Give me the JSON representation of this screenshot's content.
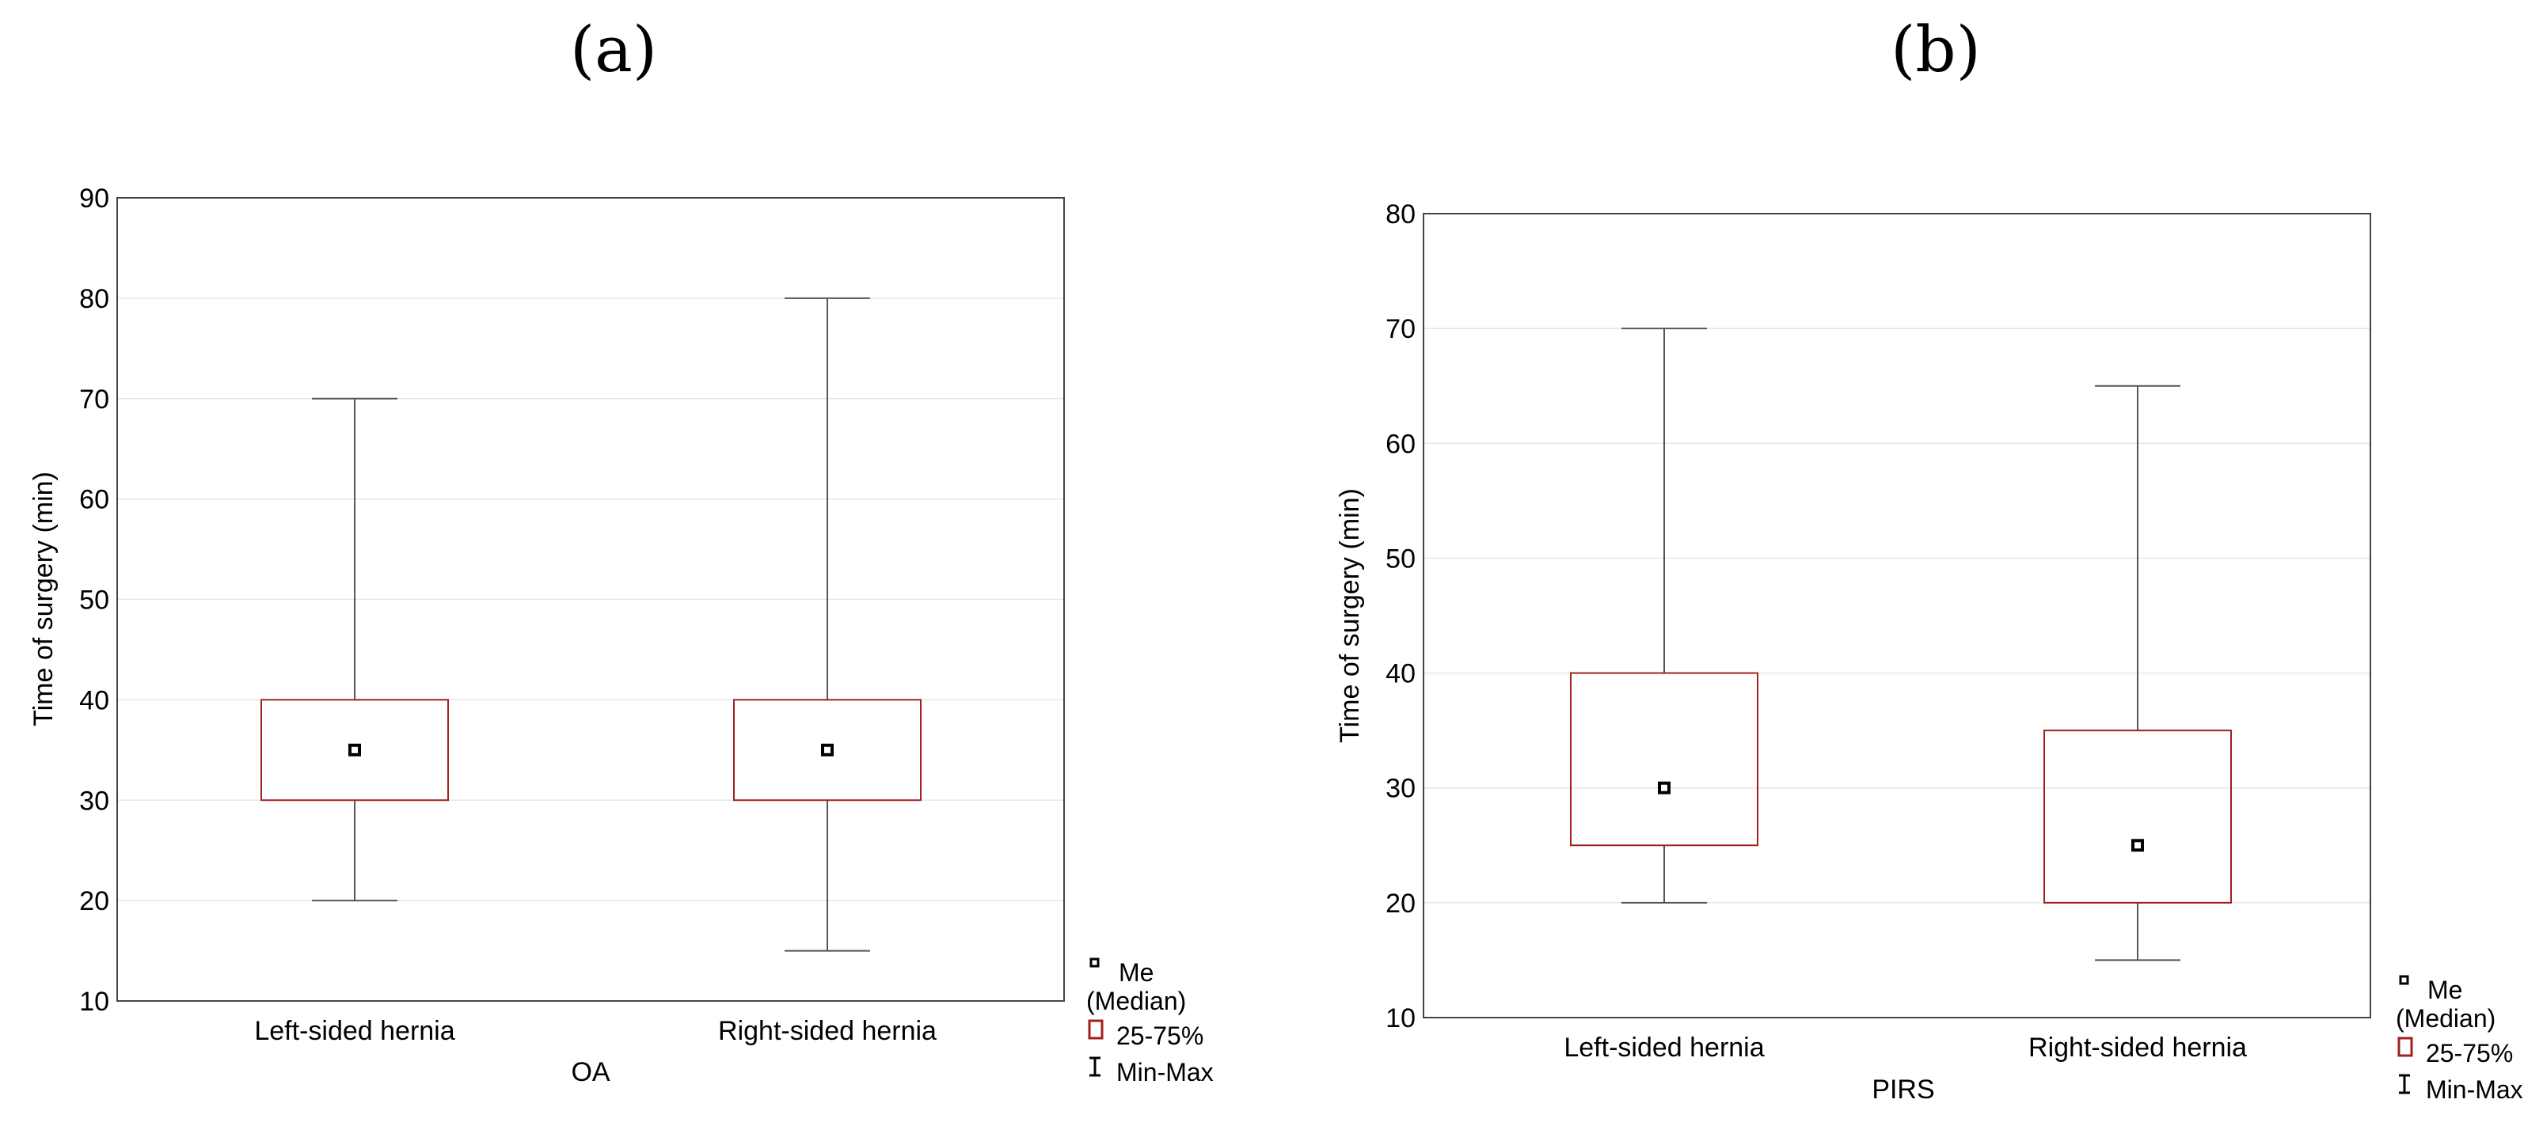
{
  "chart_data": [
    {
      "panel_label": "(a)",
      "type": "boxplot",
      "xlabel": "OA",
      "ylabel": "Time of surgery (min)",
      "ylim": [
        10,
        90
      ],
      "yticks": [
        "10",
        "20",
        "30",
        "40",
        "50",
        "60",
        "70",
        "80",
        "90"
      ],
      "categories": [
        "Left-sided hernia",
        "Right-sided hernia"
      ],
      "boxes": [
        {
          "min": 20,
          "q1": 30,
          "median": 35,
          "q3": 40,
          "max": 70
        },
        {
          "min": 15,
          "q1": 30,
          "median": 35,
          "q3": 40,
          "max": 80
        }
      ],
      "grid": true,
      "legend_position": "bottom-right-outside"
    },
    {
      "panel_label": "(b)",
      "type": "boxplot",
      "xlabel": "PIRS",
      "ylabel": "Time of surgery (min)",
      "ylim": [
        10,
        80
      ],
      "yticks": [
        "10",
        "20",
        "30",
        "40",
        "50",
        "60",
        "70",
        "80"
      ],
      "categories": [
        "Left-sided hernia",
        "Right-sided hernia"
      ],
      "boxes": [
        {
          "min": 20,
          "q1": 25,
          "median": 30,
          "q3": 40,
          "max": 70
        },
        {
          "min": 15,
          "q1": 20,
          "median": 25,
          "q3": 35,
          "max": 65
        }
      ],
      "grid": true,
      "legend_position": "bottom-right-outside"
    }
  ],
  "legend": {
    "median_label_1": "Me",
    "median_label_2": "(Median)",
    "box_label": "25-75%",
    "whisker_label": "Min-Max"
  },
  "colors": {
    "box": "#a02020",
    "whisker": "#555555",
    "grid": "#e6e6e6",
    "frame": "#444444"
  }
}
